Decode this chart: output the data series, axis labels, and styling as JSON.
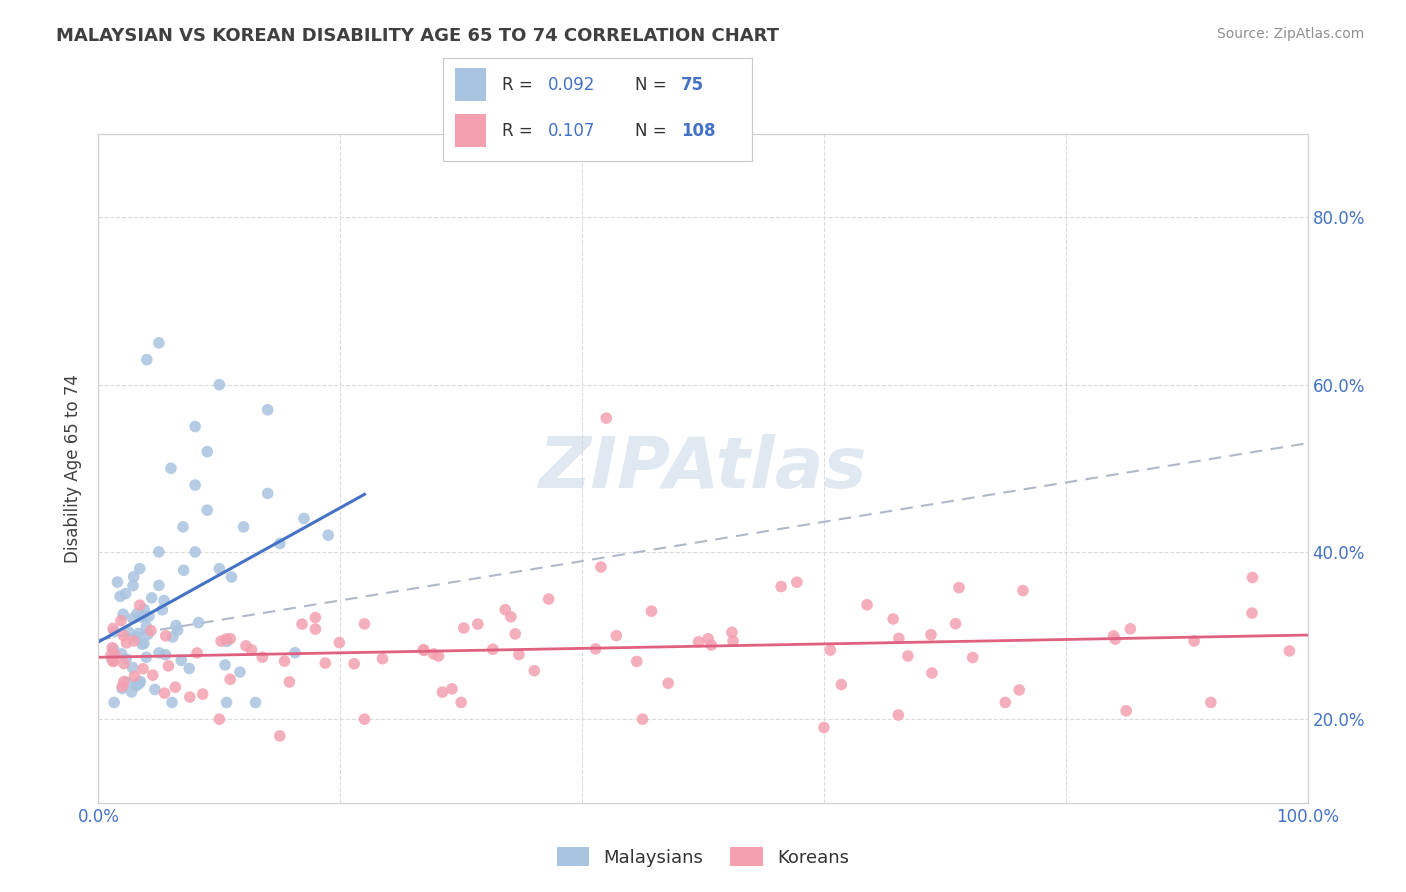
{
  "title": "MALAYSIAN VS KOREAN DISABILITY AGE 65 TO 74 CORRELATION CHART",
  "source": "Source: ZipAtlas.com",
  "ylabel": "Disability Age 65 to 74",
  "xlim": [
    0.0,
    1.0
  ],
  "ylim": [
    0.1,
    0.9
  ],
  "y_ticks": [
    0.2,
    0.4,
    0.6,
    0.8
  ],
  "y_tick_labels": [
    "20.0%",
    "40.0%",
    "60.0%",
    "80.0%"
  ],
  "x_ticks": [
    0.0,
    0.2,
    0.4,
    0.6,
    0.8,
    1.0
  ],
  "x_tick_labels": [
    "0.0%",
    "",
    "",
    "",
    "",
    "100.0%"
  ],
  "malaysian_color": "#a8c4e0",
  "korean_color": "#f4a0b0",
  "malaysian_line_color": "#4472c4",
  "korean_line_color": "#e06080",
  "background_color": "#ffffff",
  "legend_text_color": "#4472c4",
  "grid_color": "#d8d8d8",
  "dashed_line_color": "#b0b8c8",
  "title_color": "#404040",
  "source_color": "#909090",
  "ylabel_color": "#404040",
  "tick_color": "#4472c4",
  "watermark_color": "#c8d8e8"
}
